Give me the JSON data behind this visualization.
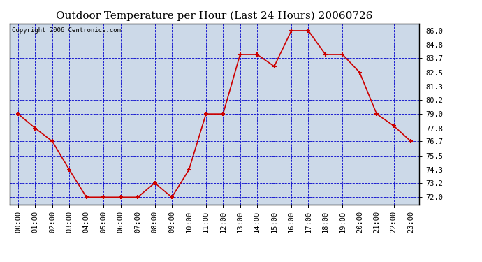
{
  "title": "Outdoor Temperature per Hour (Last 24 Hours) 20060726",
  "copyright": "Copyright 2006 Centronics.com",
  "x_labels": [
    "00:00",
    "01:00",
    "02:00",
    "03:00",
    "04:00",
    "05:00",
    "06:00",
    "07:00",
    "08:00",
    "09:00",
    "10:00",
    "11:00",
    "12:00",
    "13:00",
    "14:00",
    "15:00",
    "16:00",
    "17:00",
    "18:00",
    "19:00",
    "20:00",
    "21:00",
    "22:00",
    "23:00"
  ],
  "temperatures": [
    79.0,
    77.8,
    76.7,
    74.3,
    72.0,
    72.0,
    72.0,
    72.0,
    73.2,
    72.0,
    74.3,
    79.0,
    79.0,
    84.0,
    84.0,
    83.0,
    86.0,
    86.0,
    84.0,
    84.0,
    82.5,
    79.0,
    78.0,
    76.7
  ],
  "y_ticks": [
    72.0,
    73.2,
    74.3,
    75.5,
    76.7,
    77.8,
    79.0,
    80.2,
    81.3,
    82.5,
    83.7,
    84.8,
    86.0
  ],
  "ylim": [
    71.4,
    86.6
  ],
  "xlim": [
    -0.5,
    23.5
  ],
  "line_color": "#cc0000",
  "marker_color": "#cc0000",
  "plot_bg": "#ccd9e8",
  "border_color": "black",
  "grid_color": "#0000cc",
  "title_fontsize": 11,
  "copyright_fontsize": 6.5,
  "tick_fontsize": 7.5
}
